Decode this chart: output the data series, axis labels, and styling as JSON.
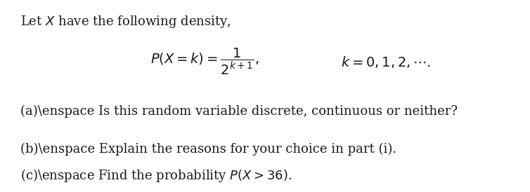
{
  "background_color": "#ffffff",
  "title_text": "Let $X$ have the following density,",
  "formula": "$P(X = k) = \\dfrac{1}{2^{k+1}},$",
  "formula_right": "$k = 0, 1, 2, \\cdots.$",
  "part_a": "(a)\\enspace Is this random variable discrete, continuous or neither?",
  "part_b": "(b)\\enspace Explain the reasons for your choice in part (i).",
  "part_c": "(c)\\enspace Find the probability $P(X > 36)$.",
  "fig_width": 7.54,
  "fig_height": 2.74,
  "dpi": 100,
  "text_color": "#1a1a1a",
  "font_size_title": 13,
  "font_size_formula": 14,
  "font_size_parts": 13
}
